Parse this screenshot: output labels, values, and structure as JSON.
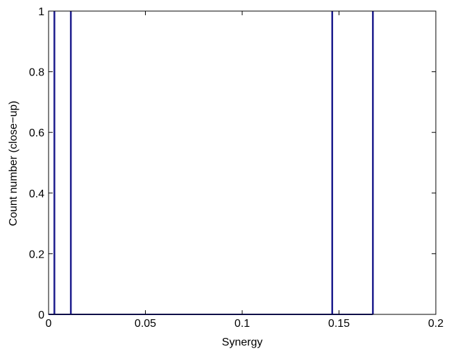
{
  "chart_data": {
    "type": "bar",
    "title": "",
    "xlabel": "Synergy",
    "ylabel": "Count number (close−up)",
    "xlim": [
      0,
      0.2
    ],
    "ylim": [
      0,
      1
    ],
    "x_ticks": [
      "0",
      "0.05",
      "0.1",
      "0.15",
      "0.2"
    ],
    "y_ticks": [
      "0",
      "0.2",
      "0.4",
      "0.6",
      "0.8",
      "1"
    ],
    "grid": false,
    "series": [
      {
        "x": [
          0.003,
          0.0115,
          0.1465,
          0.1675
        ],
        "values": [
          1,
          1,
          1,
          1
        ],
        "color": "#1a1a8c"
      }
    ]
  }
}
